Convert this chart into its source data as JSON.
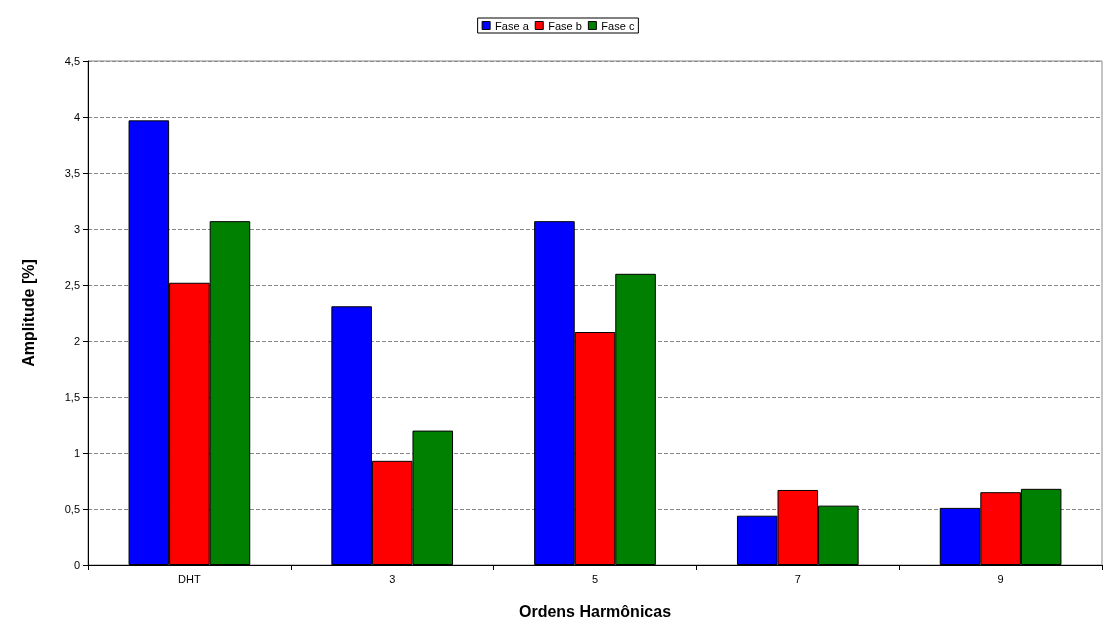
{
  "chart_data": {
    "type": "bar",
    "xlabel": "Ordens Harmônicas",
    "ylabel": "Amplitude [%]",
    "categories": [
      "DHT",
      "3",
      "5",
      "7",
      "9"
    ],
    "series": [
      {
        "name": "Fase a",
        "color": "#0000ff",
        "values": [
          3.97,
          2.31,
          3.07,
          0.44,
          0.51
        ]
      },
      {
        "name": "Fase b",
        "color": "#ff0000",
        "values": [
          2.52,
          0.93,
          2.08,
          0.67,
          0.65
        ]
      },
      {
        "name": "Fase c",
        "color": "#008000",
        "values": [
          3.07,
          1.2,
          2.6,
          0.53,
          0.68
        ]
      }
    ],
    "ylim": [
      0,
      4.5
    ],
    "yticks": [
      0,
      {
        "value": 0.5,
        "label": "0,5"
      },
      1,
      {
        "value": 1.5,
        "label": "1,5"
      },
      2,
      {
        "value": 2.5,
        "label": "2,5"
      },
      3,
      {
        "value": 3.5,
        "label": "3,5"
      },
      4,
      {
        "value": 4.5,
        "label": "4,5"
      }
    ],
    "grid": "y",
    "legend": "top"
  }
}
